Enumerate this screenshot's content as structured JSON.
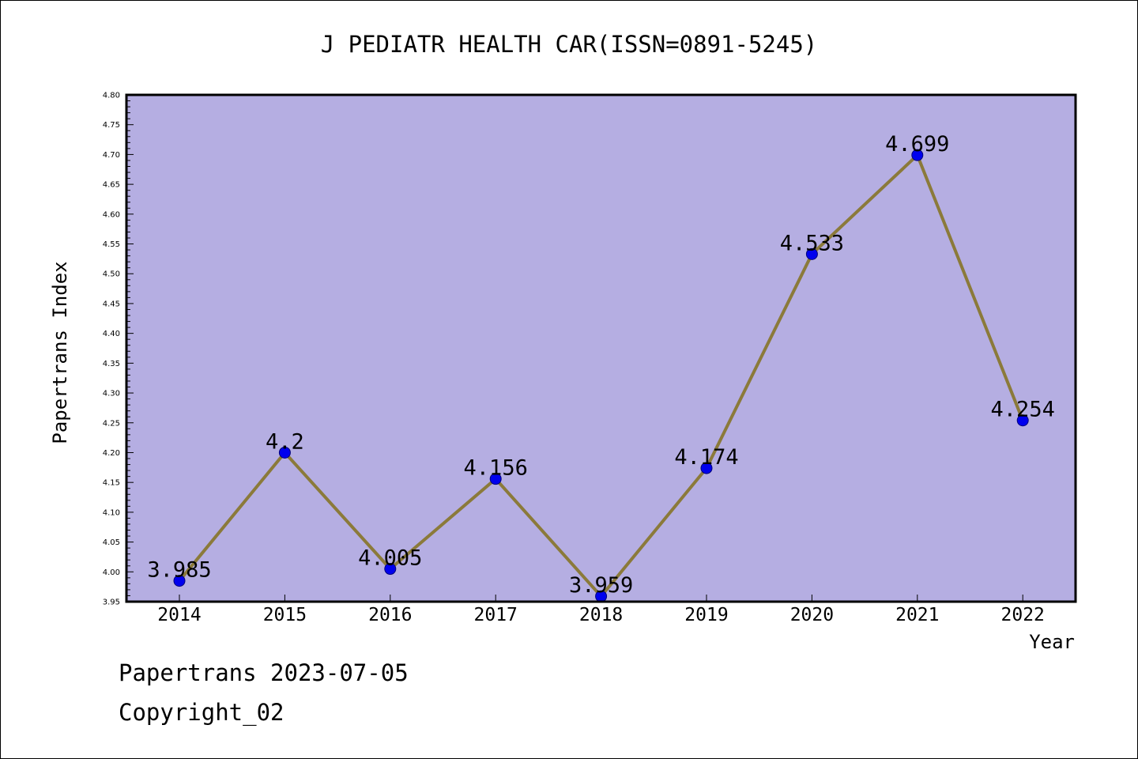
{
  "chart_data": {
    "type": "line",
    "title": "J PEDIATR HEALTH CAR(ISSN=0891-5245)",
    "xlabel": "Year",
    "ylabel": "Papertrans Index",
    "categories": [
      "2014",
      "2015",
      "2016",
      "2017",
      "2018",
      "2019",
      "2020",
      "2021",
      "2022"
    ],
    "values": [
      3.985,
      4.2,
      4.005,
      4.156,
      3.959,
      4.174,
      4.533,
      4.699,
      4.254
    ],
    "data_labels": [
      "3.985",
      "4.2",
      "4.005",
      "4.156",
      "3.959",
      "4.174",
      "4.533",
      "4.699",
      "4.254"
    ],
    "ylim": [
      3.95,
      4.8
    ],
    "yticks": [
      "3.95",
      "4.00",
      "4.05",
      "4.10",
      "4.15",
      "4.20",
      "4.25",
      "4.30",
      "4.35",
      "4.40",
      "4.45",
      "4.50",
      "4.55",
      "4.60",
      "4.65",
      "4.70",
      "4.75",
      "4.80"
    ],
    "grid": false,
    "colors": {
      "plot_background": "#b5aee2",
      "line": "#8b7a3a",
      "marker": "#0000ee",
      "axis": "#000000"
    }
  },
  "footer": {
    "line1": "Papertrans 2023-07-05",
    "line2": "Copyright_02"
  }
}
